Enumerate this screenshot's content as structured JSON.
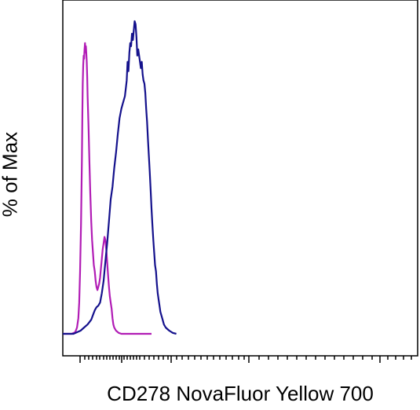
{
  "chart_data": {
    "type": "line",
    "title": "",
    "xlabel": "CD278 NovaFluor Yellow 700",
    "ylabel": "% of Max",
    "x_scale": "log",
    "xlim": [
      0,
      100
    ],
    "ylim": [
      0,
      100
    ],
    "grid": false,
    "legend": "none",
    "series": [
      {
        "color": "#b11cb5",
        "points": [
          [
            0,
            0
          ],
          [
            10,
            0
          ],
          [
            14,
            0.5
          ],
          [
            16,
            2
          ],
          [
            17.5,
            5
          ],
          [
            18.5,
            10
          ],
          [
            19.5,
            20
          ],
          [
            20.5,
            35
          ],
          [
            21.5,
            55
          ],
          [
            22,
            70
          ],
          [
            22.5,
            80
          ],
          [
            23,
            86
          ],
          [
            23.5,
            89
          ],
          [
            24,
            88
          ],
          [
            24.5,
            91
          ],
          [
            25,
            93
          ],
          [
            25.5,
            90
          ],
          [
            26,
            92
          ],
          [
            26.5,
            90
          ],
          [
            27,
            87
          ],
          [
            27.5,
            82
          ],
          [
            28,
            76
          ],
          [
            29,
            66
          ],
          [
            30,
            55
          ],
          [
            31,
            45
          ],
          [
            32,
            36
          ],
          [
            33,
            30
          ],
          [
            34,
            26
          ],
          [
            35,
            22
          ],
          [
            36,
            20
          ],
          [
            37,
            17
          ],
          [
            38,
            15
          ],
          [
            39,
            14
          ],
          [
            40,
            15
          ],
          [
            41,
            16
          ],
          [
            42,
            18
          ],
          [
            43,
            21
          ],
          [
            44,
            24
          ],
          [
            45,
            27
          ],
          [
            46,
            29
          ],
          [
            47,
            31
          ],
          [
            48,
            30
          ],
          [
            49,
            27
          ],
          [
            50,
            23
          ],
          [
            51,
            19
          ],
          [
            52,
            15
          ],
          [
            53,
            12
          ],
          [
            54,
            10
          ],
          [
            55,
            8
          ],
          [
            56,
            5
          ],
          [
            57,
            3
          ],
          [
            58,
            2
          ],
          [
            60,
            1
          ],
          [
            63,
            0.3
          ],
          [
            66,
            0
          ],
          [
            100,
            0
          ]
        ]
      },
      {
        "color": "#14118c",
        "points": [
          [
            0,
            0
          ],
          [
            12,
            0
          ],
          [
            16,
            0.5
          ],
          [
            20,
            1
          ],
          [
            24,
            2
          ],
          [
            28,
            3
          ],
          [
            32,
            4.5
          ],
          [
            34,
            6
          ],
          [
            36,
            7.5
          ],
          [
            38,
            8.5
          ],
          [
            40,
            9
          ],
          [
            42,
            10
          ],
          [
            44,
            13
          ],
          [
            46,
            17
          ],
          [
            48,
            23
          ],
          [
            50,
            29
          ],
          [
            52,
            36
          ],
          [
            54,
            43
          ],
          [
            56,
            47
          ],
          [
            58,
            53
          ],
          [
            60,
            58
          ],
          [
            62,
            64
          ],
          [
            64,
            69
          ],
          [
            66,
            72
          ],
          [
            68,
            74
          ],
          [
            70,
            76
          ],
          [
            72,
            81
          ],
          [
            73,
            87
          ],
          [
            74,
            84
          ],
          [
            75,
            90
          ],
          [
            76,
            93
          ],
          [
            77,
            92
          ],
          [
            78,
            96
          ],
          [
            79,
            94
          ],
          [
            80,
            97
          ],
          [
            81,
            100
          ],
          [
            82,
            99
          ],
          [
            83,
            95
          ],
          [
            84,
            89
          ],
          [
            85,
            91
          ],
          [
            86,
            89
          ],
          [
            87,
            87
          ],
          [
            88,
            85
          ],
          [
            89,
            87
          ],
          [
            90,
            83
          ],
          [
            91,
            81
          ],
          [
            92,
            80
          ],
          [
            93,
            77
          ],
          [
            94,
            72
          ],
          [
            95,
            68
          ],
          [
            96,
            62
          ],
          [
            97,
            57
          ],
          [
            98,
            52
          ],
          [
            99,
            46
          ],
          [
            100,
            40
          ],
          [
            101,
            35
          ],
          [
            102,
            30
          ],
          [
            103,
            26
          ],
          [
            104,
            22
          ],
          [
            105,
            20
          ],
          [
            106,
            16
          ],
          [
            107,
            13
          ],
          [
            108,
            11
          ],
          [
            109,
            9
          ],
          [
            110,
            7
          ],
          [
            112,
            5
          ],
          [
            114,
            3
          ],
          [
            116,
            2
          ],
          [
            118,
            1.5
          ],
          [
            120,
            1
          ],
          [
            124,
            0.3
          ],
          [
            128,
            0
          ]
        ]
      }
    ]
  }
}
